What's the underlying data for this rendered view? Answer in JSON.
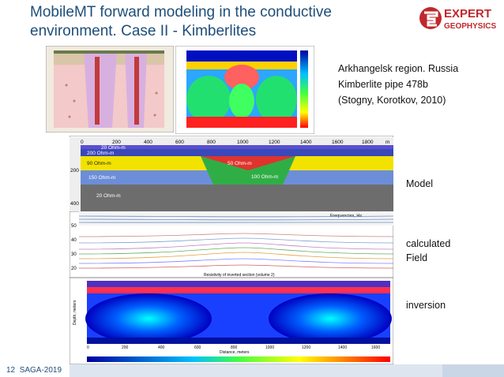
{
  "title_line1": "MobileMT forward modeling in the conductive",
  "title_line2": "environment. Case II - Kimberlites",
  "logo": {
    "top": "EXPERT",
    "bottom": "GEOPHYSICS",
    "brand_color": "#c0282d"
  },
  "reference": {
    "line1": "Arkhangelsk region. Russia",
    "line2": "Kimberlite pipe 478b",
    "line3": "(Stogny, Korotkov, 2010)"
  },
  "labels": {
    "model": "Model",
    "field": "calculated Field",
    "field1": "calculated",
    "field2": "Field",
    "inversion": "inversion"
  },
  "footer": {
    "page": "12",
    "event": "SAGA-2019"
  },
  "model": {
    "x_ticks": [
      "0",
      "200",
      "400",
      "600",
      "800",
      "1000",
      "1200",
      "1400",
      "1600",
      "1800",
      "m"
    ],
    "depth_ticks": [
      "200",
      "400"
    ],
    "layers": [
      "20 Ohm-m",
      "200 Ohm-m",
      "90 Ohm-m",
      "150 Ohm-m",
      "20 Ohm-m"
    ],
    "pipe_top": "50 Ohm-m",
    "pipe_bottom": "100 Ohm-m"
  },
  "field": {
    "title": "Frequencies, Hz",
    "y_ticks": [
      "50",
      "40",
      "30",
      "20"
    ],
    "section_title": "Resistivity of inverted section (volume 2)"
  },
  "inversion": {
    "y_label": "Depth, meters",
    "x_label": "Distance, meters",
    "x_ticks": [
      "0",
      "200",
      "400",
      "600",
      "800",
      "1000",
      "1200",
      "1400",
      "1600"
    ]
  }
}
